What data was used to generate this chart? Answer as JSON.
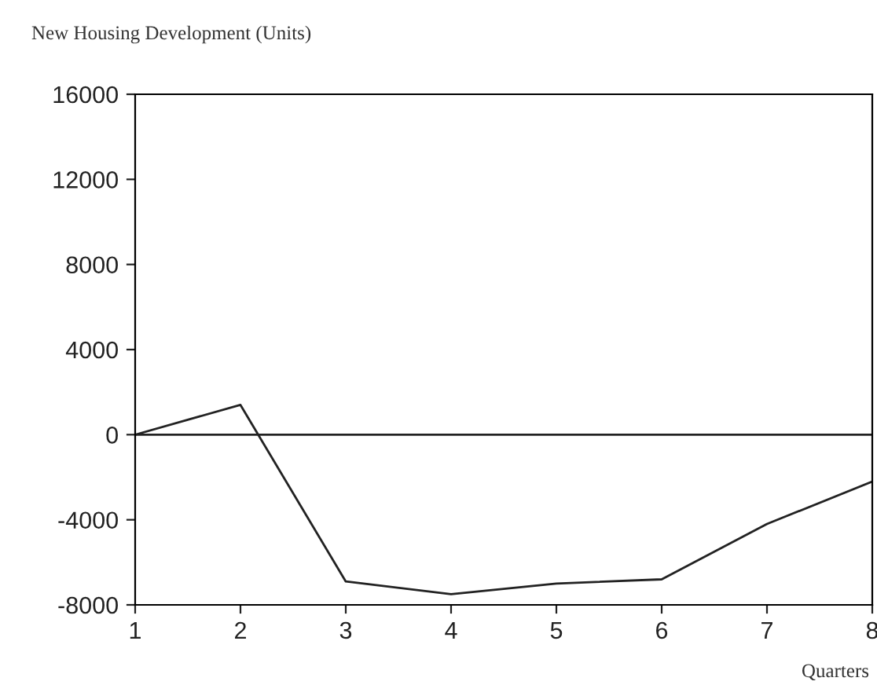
{
  "chart_data": {
    "type": "line",
    "title": "New Housing Development (Units)",
    "xlabel": "Quarters",
    "x": [
      1,
      2,
      3,
      4,
      5,
      6,
      7,
      8
    ],
    "series": [
      {
        "color": "#222222",
        "values": [
          0,
          1400,
          -6900,
          -7500,
          -7000,
          -6800,
          -4200,
          -2200
        ]
      }
    ],
    "xlim": [
      1,
      8
    ],
    "xticks": [
      1,
      2,
      3,
      4,
      5,
      6,
      7,
      8
    ],
    "ylim": [
      -8000,
      16000
    ],
    "yticks": [
      -8000,
      -4000,
      0,
      4000,
      8000,
      12000,
      16000
    ],
    "ref_lines": [
      {
        "axis": "y",
        "value": 0,
        "color": "#222222"
      }
    ],
    "grid": false,
    "legend": false,
    "marker": "none",
    "line_style": "solid"
  }
}
